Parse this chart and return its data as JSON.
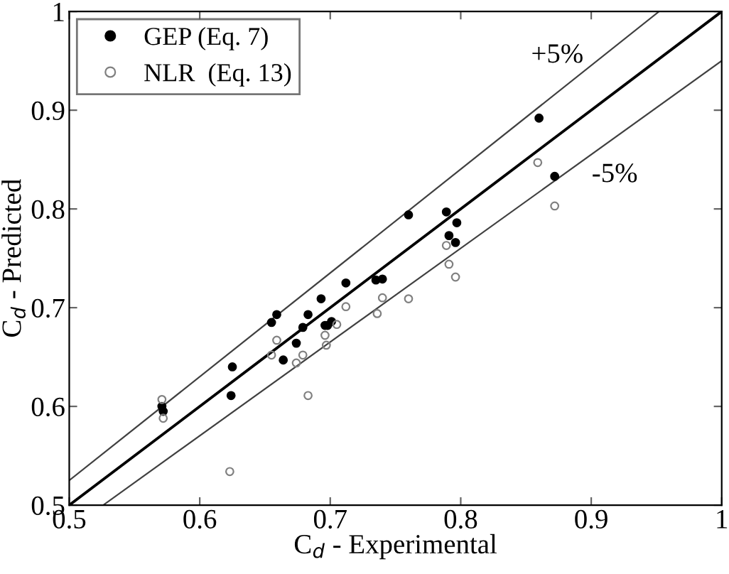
{
  "chart_data": {
    "type": "scatter",
    "xlabel": "C$_{d}$ - Experimental",
    "ylabel": "C$_{d}$ - Predicted",
    "xlim": [
      0.5,
      1
    ],
    "ylim": [
      0.5,
      1
    ],
    "xticks": [
      0.5,
      0.6,
      0.7,
      0.8,
      0.9,
      1
    ],
    "yticks": [
      0.5,
      0.6,
      0.7,
      0.8,
      0.9,
      1
    ],
    "grid": false,
    "legend": "top left",
    "series": [
      {
        "name": "GEP (Eq. 7)",
        "marker": "circle",
        "color": "#000000",
        "x": [
          0.86,
          0.872,
          0.76,
          0.789,
          0.791,
          0.797,
          0.796,
          0.712,
          0.735,
          0.74,
          0.693,
          0.655,
          0.659,
          0.683,
          0.679,
          0.674,
          0.664,
          0.696,
          0.701,
          0.698,
          0.625,
          0.624,
          0.571,
          0.572
        ],
        "values": [
          0.892,
          0.833,
          0.794,
          0.797,
          0.773,
          0.786,
          0.766,
          0.725,
          0.728,
          0.729,
          0.709,
          0.685,
          0.693,
          0.693,
          0.68,
          0.664,
          0.647,
          0.682,
          0.686,
          0.682,
          0.64,
          0.611,
          0.6,
          0.595
        ]
      },
      {
        "name": "NLR  (Eq. 13)",
        "marker": "circle",
        "color": "#808080",
        "x": [
          0.859,
          0.872,
          0.789,
          0.791,
          0.796,
          0.76,
          0.74,
          0.736,
          0.712,
          0.705,
          0.696,
          0.697,
          0.659,
          0.655,
          0.679,
          0.674,
          0.683,
          0.623,
          0.571,
          0.572
        ],
        "values": [
          0.847,
          0.803,
          0.763,
          0.744,
          0.731,
          0.709,
          0.71,
          0.694,
          0.701,
          0.683,
          0.672,
          0.662,
          0.667,
          0.652,
          0.652,
          0.644,
          0.611,
          0.534,
          0.607,
          0.588
        ]
      },
      {
        "type": "line",
        "color": "#000000",
        "x": [
          0.5,
          1
        ],
        "values": [
          0.5,
          1
        ]
      },
      {
        "type": "line",
        "color": "#404040",
        "x": [
          0.5,
          0.952
        ],
        "values": [
          0.525,
          1
        ]
      },
      {
        "type": "line",
        "color": "#404040",
        "x": [
          0.526,
          1
        ],
        "values": [
          0.5,
          0.95
        ]
      }
    ],
    "annotations": [
      "+5%",
      "-5%"
    ]
  }
}
